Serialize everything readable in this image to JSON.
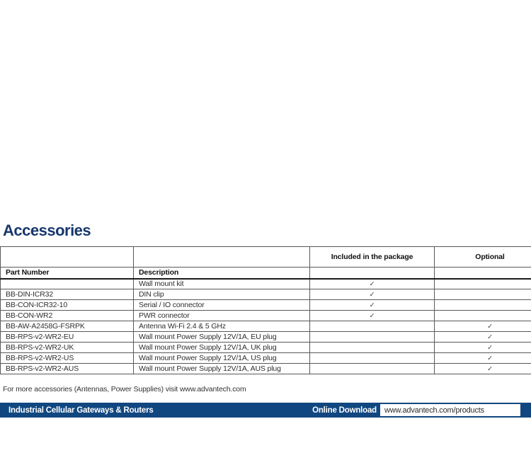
{
  "page": {
    "heading": "Accessories",
    "footnote": "For more accessories (Antennas, Power Supplies) visit www.advantech.com"
  },
  "table": {
    "header_row_1": [
      "",
      "",
      "Included in the package",
      "Optional"
    ],
    "header_row_2": [
      "Part Number",
      "Description",
      "",
      ""
    ],
    "check_glyph": "✓",
    "rows": [
      {
        "part_number": "",
        "description": "Wall mount kit",
        "included": true,
        "optional": false
      },
      {
        "part_number": "BB-DIN-ICR32",
        "description": "DIN clip",
        "included": true,
        "optional": false
      },
      {
        "part_number": "BB-CON-ICR32-10",
        "description": "Serial / IO connector",
        "included": true,
        "optional": false
      },
      {
        "part_number": "BB-CON-WR2",
        "description": "PWR connector",
        "included": true,
        "optional": false
      },
      {
        "part_number": "BB-AW-A2458G-FSRPK",
        "description": "Antenna Wi-Fi 2.4 & 5 GHz",
        "included": false,
        "optional": true
      },
      {
        "part_number": "BB-RPS-v2-WR2-EU",
        "description": "Wall mount Power Supply 12V/1A, EU plug",
        "included": false,
        "optional": true
      },
      {
        "part_number": "BB-RPS-v2-WR2-UK",
        "description": "Wall mount Power Supply 12V/1A, UK plug",
        "included": false,
        "optional": true
      },
      {
        "part_number": "BB-RPS-v2-WR2-US",
        "description": "Wall mount Power Supply 12V/1A, US plug",
        "included": false,
        "optional": true
      },
      {
        "part_number": "BB-RPS-v2-WR2-AUS",
        "description": "Wall mount Power Supply 12V/1A, AUS plug",
        "included": false,
        "optional": true
      }
    ]
  },
  "footer": {
    "product_line": "Industrial Cellular Gateways & Routers",
    "download_label": "Online Download",
    "download_url": "www.advantech.com/products"
  },
  "colors": {
    "heading": "#16376d",
    "footer_bar": "#114780"
  }
}
